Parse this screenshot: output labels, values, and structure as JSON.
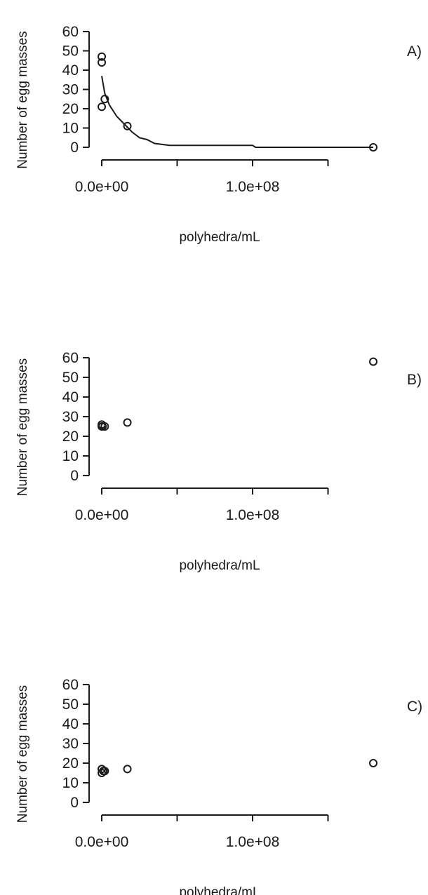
{
  "chart_data": [
    {
      "type": "scatter",
      "panel_label": "A)",
      "xlabel": "polyhedra/mL",
      "ylabel": "Number of egg masses",
      "xlim": [
        0,
        180000000
      ],
      "ylim": [
        0,
        60
      ],
      "x_tick_labels": [
        "0.0e+00",
        "1.0e+08"
      ],
      "x_tick_values": [
        0,
        50000000,
        100000000,
        150000000
      ],
      "x_label_values": [
        0,
        100000000
      ],
      "y_ticks": [
        0,
        10,
        20,
        30,
        40,
        50,
        60
      ],
      "grid": false,
      "points": [
        {
          "x": 0,
          "y": 47
        },
        {
          "x": 0,
          "y": 44
        },
        {
          "x": 0,
          "y": 21
        },
        {
          "x": 2000000,
          "y": 25
        },
        {
          "x": 17000000,
          "y": 11
        },
        {
          "x": 180000000,
          "y": 0
        }
      ],
      "fit_line": [
        {
          "x": 0,
          "y": 37
        },
        {
          "x": 2000000,
          "y": 28
        },
        {
          "x": 5000000,
          "y": 22
        },
        {
          "x": 10000000,
          "y": 16
        },
        {
          "x": 15000000,
          "y": 12
        },
        {
          "x": 20000000,
          "y": 8
        },
        {
          "x": 25000000,
          "y": 5
        },
        {
          "x": 30000000,
          "y": 4
        },
        {
          "x": 35000000,
          "y": 2
        },
        {
          "x": 45000000,
          "y": 1
        },
        {
          "x": 100000000,
          "y": 1
        },
        {
          "x": 102000000,
          "y": 0
        },
        {
          "x": 180000000,
          "y": 0
        }
      ]
    },
    {
      "type": "scatter",
      "panel_label": "B)",
      "xlabel": "polyhedra/mL",
      "ylabel": "Number of egg masses",
      "xlim": [
        0,
        180000000
      ],
      "ylim": [
        0,
        60
      ],
      "x_tick_labels": [
        "0.0e+00",
        "1.0e+08"
      ],
      "x_tick_values": [
        0,
        50000000,
        100000000,
        150000000
      ],
      "x_label_values": [
        0,
        100000000
      ],
      "y_ticks": [
        0,
        10,
        20,
        30,
        40,
        50,
        60
      ],
      "grid": false,
      "points": [
        {
          "x": 0,
          "y": 26
        },
        {
          "x": 0,
          "y": 25
        },
        {
          "x": 500000,
          "y": 25
        },
        {
          "x": 2000000,
          "y": 25
        },
        {
          "x": 17000000,
          "y": 27
        },
        {
          "x": 180000000,
          "y": 58
        }
      ]
    },
    {
      "type": "scatter",
      "panel_label": "C)",
      "xlabel": "polyhedra/mL",
      "ylabel": "Number of egg masses",
      "xlim": [
        0,
        180000000
      ],
      "ylim": [
        0,
        60
      ],
      "x_tick_labels": [
        "0.0e+00",
        "1.0e+08"
      ],
      "x_tick_values": [
        0,
        50000000,
        100000000,
        150000000
      ],
      "x_label_values": [
        0,
        100000000
      ],
      "y_ticks": [
        0,
        10,
        20,
        30,
        40,
        50,
        60
      ],
      "grid": false,
      "points": [
        {
          "x": 0,
          "y": 17
        },
        {
          "x": 0,
          "y": 15
        },
        {
          "x": 1000000,
          "y": 16
        },
        {
          "x": 2000000,
          "y": 16
        },
        {
          "x": 17000000,
          "y": 17
        },
        {
          "x": 180000000,
          "y": 20
        }
      ]
    }
  ]
}
